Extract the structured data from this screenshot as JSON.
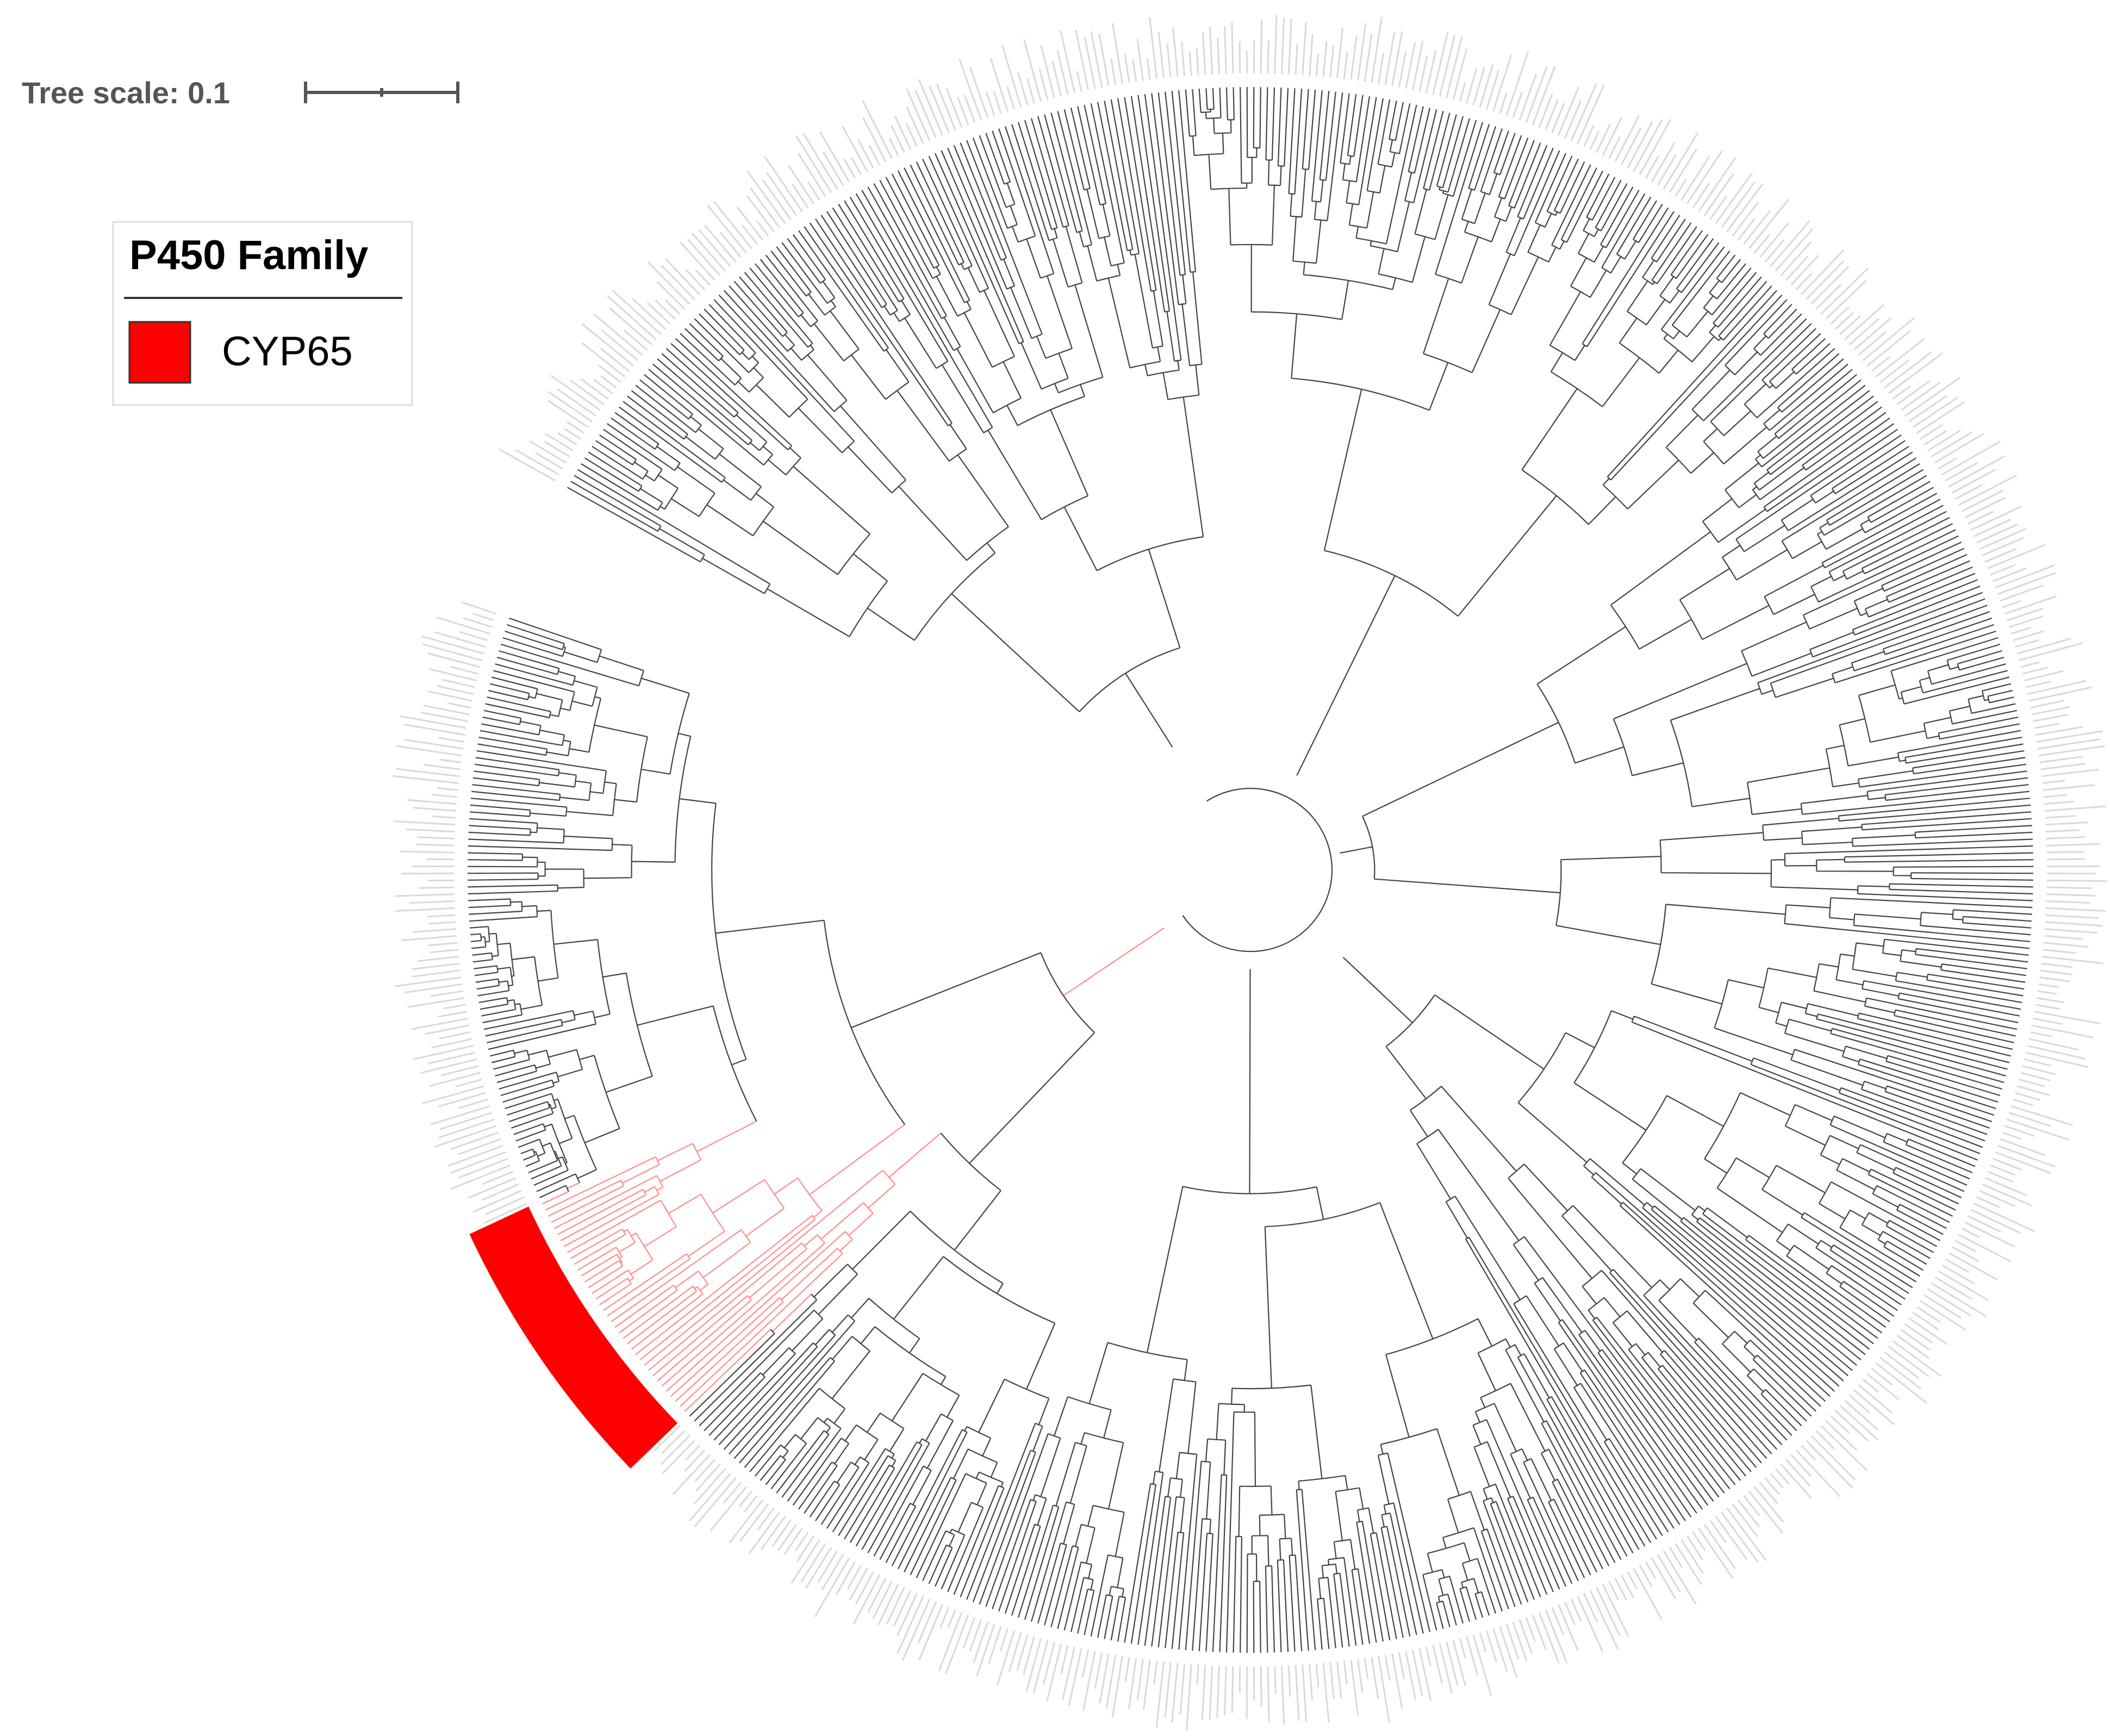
{
  "scale_bar": {
    "label": "Tree scale: 0.1"
  },
  "legend": {
    "title": "P450 Family",
    "items": [
      {
        "label": "CYP65",
        "color": "#ff0000"
      }
    ]
  }
}
